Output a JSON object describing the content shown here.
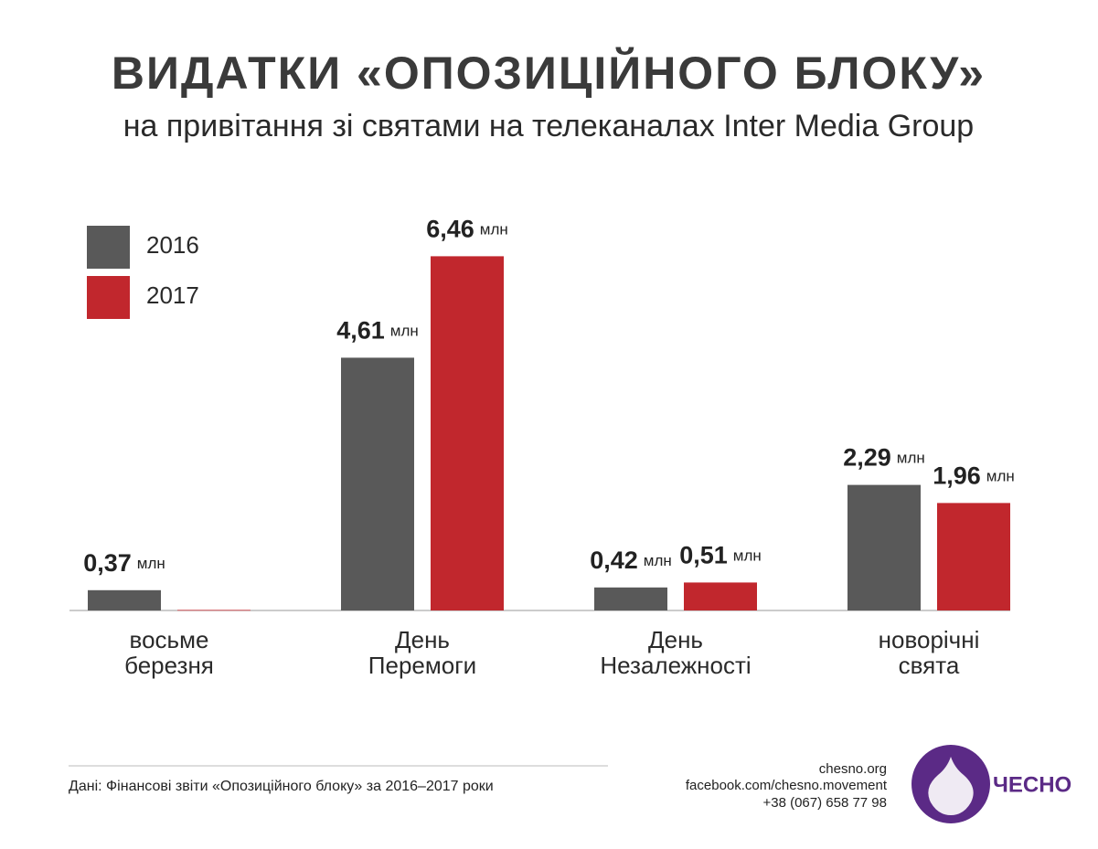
{
  "chart_data": {
    "type": "bar",
    "title": "ВИДАТКИ «ОПОЗИЦІЙНОГО БЛОКУ»",
    "subtitle": "на привітання зі святами на телеканалах Inter Media Group",
    "categories": [
      "восьме березня",
      "День Перемоги",
      "День Незалежності",
      "новорічні свята"
    ],
    "series": [
      {
        "name": "2016",
        "color": "#595959",
        "values": [
          0.37,
          4.61,
          0.42,
          2.29
        ],
        "value_labels": [
          "0,37",
          "4,61",
          "0,42",
          "2,29"
        ]
      },
      {
        "name": "2017",
        "color": "#c1272d",
        "values": [
          0.01,
          6.46,
          0.51,
          1.96
        ],
        "value_labels": [
          null,
          "6,46",
          "0,51",
          "1,96"
        ]
      }
    ],
    "unit": "млн",
    "ylim": [
      0,
      6.5
    ]
  },
  "footer": {
    "source": "Дані: Фінансові звіти «Опозиційного блоку» за 2016–2017 роки",
    "contacts": [
      "chesno.org",
      "facebook.com/chesno.movement",
      "+38 (067) 658 77 98"
    ],
    "logo": "ЧЕСНО"
  }
}
